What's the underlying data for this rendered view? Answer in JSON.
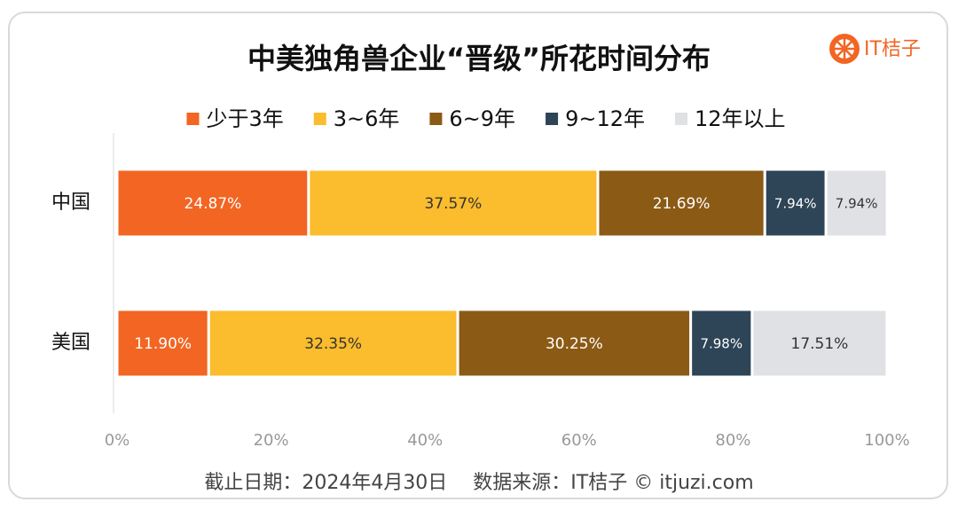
{
  "chart_data": {
    "type": "stacked-bar-horizontal",
    "title": "中美独角兽企业“晋级”所花时间分布",
    "brand": "IT桔子",
    "categories": [
      "中国",
      "美国"
    ],
    "series": [
      {
        "name": "少于3年",
        "color": "#f26522",
        "label_color": "#ffffff",
        "values": [
          24.87,
          11.9
        ],
        "value_labels": [
          "24.87%",
          "11.90%"
        ]
      },
      {
        "name": "3~6年",
        "color": "#fbbc2d",
        "label_color": "#333333",
        "values": [
          37.57,
          32.35
        ],
        "value_labels": [
          "37.57%",
          "32.35%"
        ]
      },
      {
        "name": "6~9年",
        "color": "#8b5a14",
        "label_color": "#ffffff",
        "values": [
          21.69,
          30.25
        ],
        "value_labels": [
          "21.69%",
          "30.25%"
        ]
      },
      {
        "name": "9~12年",
        "color": "#2e4457",
        "label_color": "#ffffff",
        "values": [
          7.94,
          7.98
        ],
        "value_labels": [
          "7.94%",
          "7.98%"
        ]
      },
      {
        "name": "12年以上",
        "color": "#e0e1e5",
        "label_color": "#333333",
        "values": [
          7.94,
          17.51
        ],
        "value_labels": [
          "7.94%",
          "17.51%"
        ]
      }
    ],
    "xlim": [
      0,
      100
    ],
    "xticks": [
      {
        "value": 0,
        "label": "0%"
      },
      {
        "value": 20,
        "label": "20%"
      },
      {
        "value": 40,
        "label": "40%"
      },
      {
        "value": 60,
        "label": "60%"
      },
      {
        "value": 80,
        "label": "80%"
      },
      {
        "value": 100,
        "label": "100%"
      }
    ],
    "source": "截止日期：2024年4月30日　 数据来源：IT桔子 © itjuzi.com"
  }
}
